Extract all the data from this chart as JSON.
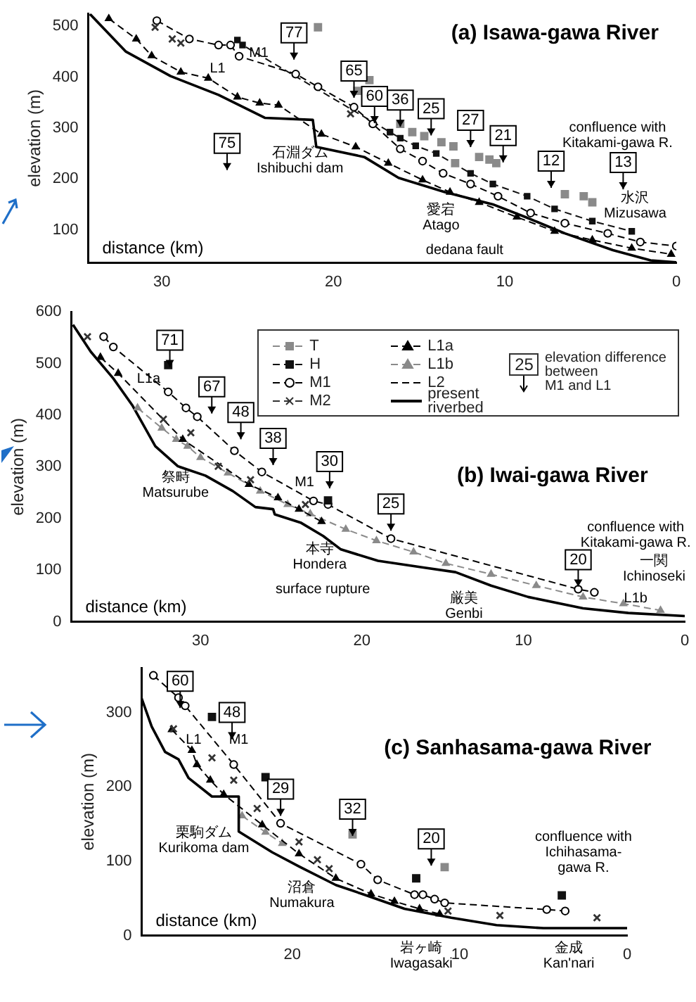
{
  "chart_data": [
    {
      "type": "line",
      "title": "(a) Isawa-gawa River",
      "xlabel": "distance (km)",
      "ylabel": "elevation (m)",
      "xlim": [
        34.3,
        0
      ],
      "xticks": [
        0,
        10,
        20,
        30
      ],
      "ylim": [
        35,
        525
      ],
      "yticks": [
        100,
        200,
        300,
        400,
        500
      ],
      "legend": false,
      "series": [
        {
          "type": "line",
          "color": "#000000",
          "marker": "none",
          "line_style": "solid",
          "x": [
            34.2,
            32.1,
            29.5,
            26.7,
            24,
            21.2,
            21,
            18.2,
            16.2,
            13.5,
            10.7,
            8.8,
            6.5,
            3.7,
            1.5,
            0
          ],
          "values": [
            524,
            450,
            402,
            365,
            320,
            316,
            263,
            243,
            202,
            174,
            150,
            125,
            93,
            60,
            40,
            36
          ]
        },
        {
          "type": "line",
          "color": "#000000",
          "marker": "circle",
          "line_style": "dashed",
          "x": [
            30.3,
            28.4,
            26.7,
            26,
            25.5,
            22.2,
            20.9,
            18.8,
            17.7,
            16.1,
            14.8,
            13.6,
            12,
            10.4,
            8.5,
            6.5,
            4,
            2.1,
            0
          ],
          "values": [
            511,
            475,
            463,
            463,
            441,
            406,
            381,
            341,
            308,
            259,
            235,
            211,
            190,
            166,
            133,
            113,
            93,
            76,
            68
          ]
        },
        {
          "type": "line",
          "color": "#000000",
          "marker": "triangle",
          "line_style": "dashed",
          "x": [
            33.1,
            31.5,
            30.6,
            28.9,
            27.3,
            25.6,
            24.3,
            23.2,
            20.7,
            18.7,
            16.8,
            14.8,
            13.2,
            11.5,
            9.3,
            7.1,
            4.9,
            2.6,
            0.3
          ],
          "values": [
            515,
            475,
            442,
            410,
            398,
            361,
            349,
            345,
            288,
            263,
            231,
            198,
            174,
            154,
            125,
            97,
            80,
            64,
            52
          ]
        },
        {
          "type": "line",
          "color": "#111111",
          "marker": "square",
          "line_style": "dashed",
          "x": [
            25.6,
            25.3,
            16.7,
            16.1,
            15.2,
            14,
            12,
            10.7,
            8.7,
            7.1,
            4.9,
            2.6
          ],
          "values": [
            473,
            463,
            292,
            280,
            265,
            250,
            211,
            190,
            166,
            141,
            117,
            97
          ]
        },
        {
          "type": "scatter",
          "color": "#8a8a8a",
          "marker": "square",
          "x": [
            20.9,
            17.9,
            18.6,
            16.1,
            15.4,
            14.7,
            13.7,
            13,
            12.9,
            11.5,
            10.9,
            10.5,
            6.5,
            5.4,
            4.9
          ],
          "values": [
            498,
            394,
            373,
            308,
            292,
            284,
            272,
            264,
            231,
            243,
            238,
            231,
            170,
            166,
            154
          ]
        },
        {
          "type": "scatter",
          "color": "#333333",
          "marker": "cross",
          "x": [
            30.4,
            29.4,
            28.9,
            19
          ],
          "values": [
            498,
            475,
            467,
            328
          ]
        }
      ],
      "annotations": [
        {
          "text": "77",
          "x": 22.3,
          "y": 487
        },
        {
          "text": "65",
          "x": 18.8,
          "y": 412
        },
        {
          "text": "60",
          "x": 17.6,
          "y": 362
        },
        {
          "text": "36",
          "x": 16.1,
          "y": 355
        },
        {
          "text": "25",
          "x": 14.3,
          "y": 338
        },
        {
          "text": "27",
          "x": 12,
          "y": 315
        },
        {
          "text": "21",
          "x": 10.1,
          "y": 285
        },
        {
          "text": "12",
          "x": 7.3,
          "y": 235
        },
        {
          "text": "13",
          "x": 3.1,
          "y": 232
        },
        {
          "text": "75",
          "x": 26.2,
          "y": 270
        },
        "M1",
        "L1",
        "石淵ダム\nIshibuchi dam",
        "愛宕\nAtago",
        "水沢\nMizusawa",
        "dedana fault",
        "confluence with\nKitakami-gawa R."
      ]
    },
    {
      "type": "line",
      "title": "(b) Iwai-gawa River",
      "xlabel": "distance (km)",
      "ylabel": "elevation (m)",
      "xlim": [
        38,
        0
      ],
      "xticks": [
        0,
        10,
        20,
        30
      ],
      "ylim": [
        0,
        600
      ],
      "yticks": [
        0,
        100,
        200,
        300,
        400,
        500,
        600
      ],
      "legend": "top right",
      "series": [
        {
          "name": "T",
          "type": "scatter",
          "color": "#8a8a8a",
          "marker": "square",
          "line_style": "dashed"
        },
        {
          "name": "H",
          "type": "scatter",
          "color": "#111111",
          "marker": "square",
          "line_style": "dashed",
          "x": [
            32,
            22.1
          ],
          "values": [
            497,
            235
          ]
        },
        {
          "name": "M1",
          "type": "line",
          "color": "#000000",
          "marker": "circle",
          "line_style": "dashed",
          "x": [
            36,
            35.4,
            32,
            30.9,
            30.2,
            27.9,
            26.2,
            23,
            22.1,
            18.2,
            6.6,
            5.6
          ],
          "values": [
            552,
            532,
            445,
            414,
            397,
            331,
            290,
            234,
            227,
            161,
            63,
            57
          ]
        },
        {
          "name": "M2",
          "type": "scatter",
          "color": "#333333",
          "marker": "cross",
          "line_style": "dashed",
          "x": [
            37,
            32.3,
            30.6,
            28.9,
            26.9,
            23.5
          ],
          "values": [
            552,
            392,
            366,
            301,
            275,
            227
          ]
        },
        {
          "name": "L1a",
          "type": "line",
          "color": "#000000",
          "marker": "triangle",
          "line_style": "dashed",
          "x": [
            36.2,
            35.1,
            31.1,
            27,
            25.2,
            23.9,
            22.5
          ],
          "values": [
            512,
            481,
            353,
            266,
            240,
            218,
            194
          ]
        },
        {
          "name": "L1b",
          "type": "line",
          "color": "#8a8a8a",
          "marker": "triangle",
          "line_style": "dashed",
          "x": [
            33.9,
            32.4,
            31.5,
            30.8,
            30,
            28.3,
            26.3,
            24.6,
            23.2,
            21,
            19.1,
            16.8,
            14.8,
            12,
            9.2,
            6.3,
            3.8,
            1.5
          ],
          "values": [
            414,
            375,
            353,
            340,
            318,
            288,
            253,
            227,
            209,
            179,
            157,
            135,
            113,
            92,
            70,
            48,
            35,
            22
          ]
        },
        {
          "name": "L2",
          "type": "line",
          "color": "#000000",
          "marker": "none",
          "line_style": "dashed"
        },
        {
          "name": "present riverbed",
          "type": "line",
          "color": "#000000",
          "marker": "none",
          "line_style": "solid",
          "x": [
            37.9,
            36.8,
            35.4,
            34.2,
            32.8,
            31.4,
            29.7,
            28,
            26.6,
            25.5,
            25.4,
            23.8,
            22.4,
            21.3,
            19,
            16.2,
            14.2,
            12,
            9.7,
            6.3,
            3.5,
            0
          ],
          "values": [
            575,
            523,
            471,
            418,
            340,
            301,
            283,
            253,
            222,
            218,
            208,
            192,
            166,
            140,
            118,
            105,
            96,
            70,
            48,
            26,
            17,
            11
          ]
        }
      ],
      "annotations": [
        "25",
        "elevation difference\nbetween\nM1 and L1",
        {
          "text": "71",
          "x": 31.9,
          "y": 545
        },
        {
          "text": "67",
          "x": 29.3,
          "y": 455
        },
        {
          "text": "48",
          "x": 27.5,
          "y": 405
        },
        {
          "text": "38",
          "x": 25.5,
          "y": 355
        },
        {
          "text": "30",
          "x": 22,
          "y": 310
        },
        {
          "text": "25",
          "x": 18.2,
          "y": 228
        },
        {
          "text": "20",
          "x": 6.6,
          "y": 120
        },
        "L1a",
        "M1",
        "L1b",
        "祭畤\nMatsurube",
        "本寺\nHondera",
        "surface rupture",
        "厳美\nGenbi",
        "一関\nIchinoseki",
        "confluence with\nKitakami-gawa R."
      ]
    },
    {
      "type": "line",
      "title": "(c) Sanhasama-gawa River",
      "xlabel": "distance (km)",
      "ylabel": "elevation (m)",
      "xlim": [
        29,
        0
      ],
      "xticks": [
        0,
        10,
        20
      ],
      "ylim": [
        0,
        360
      ],
      "yticks": [
        0,
        100,
        200,
        300
      ],
      "legend": false,
      "series": [
        {
          "type": "line",
          "color": "#000000",
          "marker": "none",
          "line_style": "solid",
          "x": [
            29,
            28.4,
            27.6,
            26.8,
            26.2,
            24.8,
            23.2,
            23.2,
            21.2,
            19.6,
            17.4,
            15.7,
            13.3,
            10.5,
            7.8,
            5,
            0
          ],
          "values": [
            319,
            281,
            247,
            237,
            212,
            187,
            187,
            140,
            112,
            93,
            68,
            55,
            36,
            24,
            14,
            10,
            10
          ]
        },
        {
          "type": "line",
          "color": "#000000",
          "marker": "circle",
          "line_style": "dashed",
          "x": [
            28.3,
            26.8,
            26.4,
            23.5,
            20.7,
            15.9,
            14.9,
            12.7,
            12.2,
            11.5,
            10.9,
            4.8,
            3.7
          ],
          "values": [
            350,
            320,
            309,
            230,
            151,
            96,
            75,
            55,
            55,
            49,
            44,
            35,
            33
          ]
        },
        {
          "type": "line",
          "color": "#000000",
          "marker": "triangle",
          "line_style": "dashed",
          "x": [
            27.2,
            26,
            25.7,
            24.9,
            24.1,
            21.8,
            19.6,
            17.4,
            15.3,
            13.9,
            12.4,
            11.2
          ],
          "values": [
            277,
            249,
            230,
            209,
            190,
            149,
            110,
            77,
            56,
            46,
            36,
            29
          ]
        },
        {
          "type": "line",
          "color": "#8a8a8a",
          "marker": "triangle",
          "line_style": "dashed",
          "x": [
            23,
            21.6,
            20.6
          ],
          "values": [
            161,
            139,
            124
          ]
        },
        {
          "type": "scatter",
          "color": "#333333",
          "marker": "cross",
          "x": [
            27.1,
            24.8,
            23.5,
            22.1,
            19.6,
            18.5,
            17.8,
            10.7,
            7.6,
            1.8
          ],
          "values": [
            278,
            239,
            209,
            171,
            126,
            102,
            90,
            33,
            27,
            24
          ]
        },
        {
          "type": "scatter",
          "color": "#111111",
          "marker": "square",
          "x": [
            24.8,
            21.6,
            12.6,
            3.9
          ],
          "values": [
            294,
            213,
            77,
            54
          ]
        },
        {
          "type": "scatter",
          "color": "#8a8a8a",
          "marker": "square",
          "x": [
            16.4,
            10.9
          ],
          "values": [
            136,
            92
          ]
        }
      ],
      "annotations": [
        {
          "text": "60",
          "x": 26.7,
          "y": 342
        },
        {
          "text": "48",
          "x": 23.6,
          "y": 300
        },
        {
          "text": "29",
          "x": 20.7,
          "y": 197
        },
        {
          "text": "32",
          "x": 16.4,
          "y": 170
        },
        {
          "text": "20",
          "x": 11.7,
          "y": 130
        },
        "M1",
        "L1",
        "栗駒ダム\nKurikoma dam",
        "沼倉\nNumakura",
        "岩ヶ崎\nIwagasaki",
        "金成\nKan'nari",
        "confluence with\nIchihasama-\ngawa R."
      ]
    }
  ]
}
